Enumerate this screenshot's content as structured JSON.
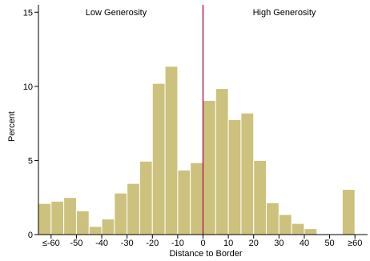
{
  "chart_data": {
    "type": "bar",
    "xlabel": "Distance to Border",
    "ylabel": "Percent",
    "xlim": [
      -65,
      65
    ],
    "ylim": [
      0,
      15.5
    ],
    "yticks": [
      0,
      5,
      10,
      15
    ],
    "xticks": [
      {
        "value": -60,
        "label": "≤-60"
      },
      {
        "value": -50,
        "label": "-50"
      },
      {
        "value": -40,
        "label": "-40"
      },
      {
        "value": -30,
        "label": "-30"
      },
      {
        "value": -20,
        "label": "-20"
      },
      {
        "value": -10,
        "label": "-10"
      },
      {
        "value": 0,
        "label": "0"
      },
      {
        "value": 10,
        "label": "10"
      },
      {
        "value": 20,
        "label": "20"
      },
      {
        "value": 30,
        "label": "30"
      },
      {
        "value": 40,
        "label": "40"
      },
      {
        "value": 50,
        "label": "50"
      },
      {
        "value": 60,
        "label": "≥60"
      }
    ],
    "bin_width": 5,
    "bins": [
      {
        "start": -65,
        "value": 2.1
      },
      {
        "start": -60,
        "value": 2.25
      },
      {
        "start": -55,
        "value": 2.5
      },
      {
        "start": -50,
        "value": 1.6
      },
      {
        "start": -45,
        "value": 0.55
      },
      {
        "start": -40,
        "value": 1.05
      },
      {
        "start": -35,
        "value": 2.8
      },
      {
        "start": -30,
        "value": 3.45
      },
      {
        "start": -25,
        "value": 4.95
      },
      {
        "start": -20,
        "value": 10.2
      },
      {
        "start": -15,
        "value": 11.35
      },
      {
        "start": -10,
        "value": 4.35
      },
      {
        "start": -5,
        "value": 4.85
      },
      {
        "start": 0,
        "value": 9.05
      },
      {
        "start": 5,
        "value": 9.85
      },
      {
        "start": 10,
        "value": 7.75
      },
      {
        "start": 15,
        "value": 8.2
      },
      {
        "start": 20,
        "value": 5.0
      },
      {
        "start": 25,
        "value": 2.15
      },
      {
        "start": 30,
        "value": 1.35
      },
      {
        "start": 35,
        "value": 0.75
      },
      {
        "start": 40,
        "value": 0.4
      },
      {
        "start": 55,
        "value": 3.05
      }
    ],
    "cutoff": 0,
    "annotations": {
      "left": "Low Generosity",
      "right": "High Generosity"
    },
    "colors": {
      "bar_fill": "#cdc27d",
      "bar_stroke": "#ffffff",
      "cutoff_line": "#b3245a",
      "axis": "#000000"
    },
    "grid": false
  }
}
